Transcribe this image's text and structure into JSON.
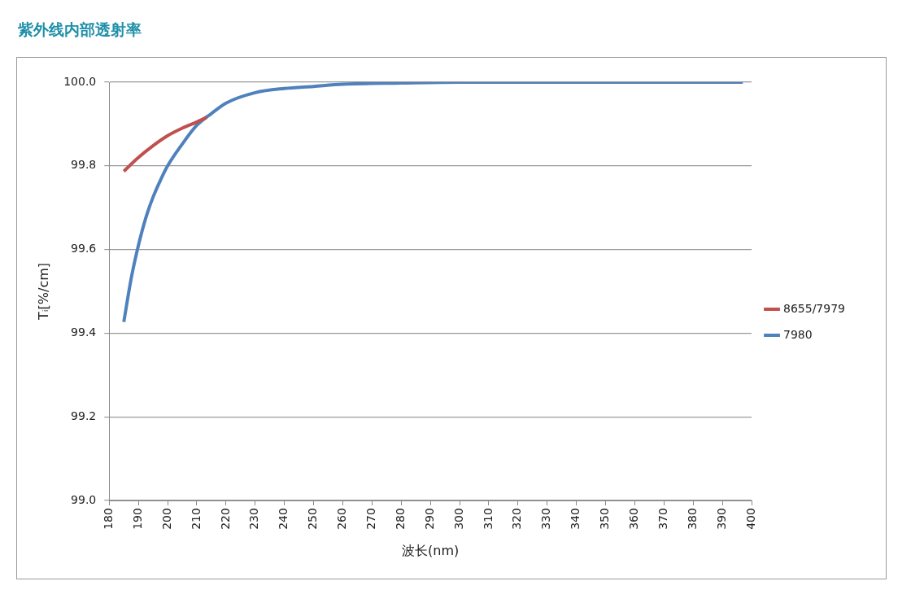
{
  "chart_data": {
    "type": "line",
    "title": "紫外线内部透射率",
    "xlabel": "波长(nm)",
    "ylabel": "Tᵢ[%/cm]",
    "series": [
      {
        "name": "8655/7979",
        "color": "#c0504d",
        "x": [
          185,
          190,
          195,
          200,
          205,
          210,
          213.4
        ],
        "values": [
          99.787,
          99.82,
          99.848,
          99.872,
          99.89,
          99.905,
          99.916
        ]
      },
      {
        "name": "7980",
        "color": "#4f81bd",
        "x": [
          185,
          187.5,
          190,
          192.5,
          195,
          197.5,
          200,
          205,
          210,
          215,
          220,
          230,
          240,
          250,
          260,
          280,
          300,
          350,
          397
        ],
        "values": [
          99.427,
          99.53,
          99.61,
          99.675,
          99.725,
          99.765,
          99.8,
          99.852,
          99.897,
          99.925,
          99.95,
          99.975,
          99.985,
          99.99,
          99.995,
          99.998,
          100,
          100,
          100
        ]
      }
    ],
    "xlim": [
      180,
      400
    ],
    "xticks": [
      180,
      190,
      200,
      210,
      220,
      230,
      240,
      250,
      260,
      270,
      280,
      290,
      300,
      310,
      320,
      330,
      340,
      350,
      360,
      370,
      380,
      390,
      400
    ],
    "ylim": [
      99,
      100
    ],
    "yticks": [
      {
        "value": 99,
        "label": "99.0"
      },
      {
        "value": 99.2,
        "label": "99.2"
      },
      {
        "value": 99.4,
        "label": "99.4"
      },
      {
        "value": 99.6,
        "label": "99.6"
      },
      {
        "value": 99.8,
        "label": "99.8"
      },
      {
        "value": 100,
        "label": "100.0"
      }
    ],
    "grid": "y",
    "legend": "right",
    "marker": "none",
    "line_style": "solid"
  }
}
